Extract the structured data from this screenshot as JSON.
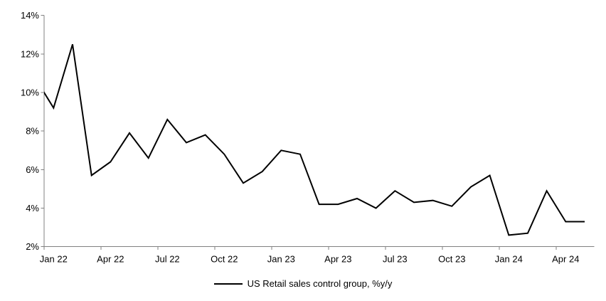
{
  "chart_data": {
    "type": "line",
    "title": "",
    "legend_label": "US Retail sales control group, %y/y",
    "legend_position": "bottom-center",
    "grid": "off",
    "y_axis": {
      "range": [
        2,
        14
      ],
      "tick_values": [
        2,
        4,
        6,
        8,
        10,
        12,
        14
      ],
      "tick_labels": [
        "2%",
        "4%",
        "6%",
        "8%",
        "10%",
        "12%",
        "14%"
      ]
    },
    "x_axis": {
      "tick_labels": [
        "Jan 22",
        "Apr 22",
        "Jul 22",
        "Oct 22",
        "Jan 23",
        "Apr 23",
        "Jul 23",
        "Oct 23",
        "Jan 24",
        "Apr 24"
      ],
      "months_per_label": 3
    },
    "series": [
      {
        "name": "US Retail sales control group, %y/y",
        "color": "#000000",
        "first_point_clipped_off_left_edge": true,
        "months": [
          "Dec 21",
          "Jan 22",
          "Feb 22",
          "Mar 22",
          "Apr 22",
          "May 22",
          "Jun 22",
          "Jul 22",
          "Aug 22",
          "Sep 22",
          "Oct 22",
          "Nov 22",
          "Dec 22",
          "Jan 23",
          "Feb 23",
          "Mar 23",
          "Apr 23",
          "May 23",
          "Jun 23",
          "Jul 23",
          "Aug 23",
          "Sep 23",
          "Oct 23",
          "Nov 23",
          "Dec 23",
          "Jan 24",
          "Feb 24",
          "Mar 24",
          "Apr 24",
          "May 24"
        ],
        "values": [
          10.8,
          9.2,
          12.5,
          5.7,
          6.4,
          7.9,
          6.6,
          8.6,
          7.4,
          7.8,
          6.8,
          5.3,
          5.9,
          7.0,
          6.8,
          4.2,
          4.2,
          4.5,
          4.0,
          4.9,
          4.3,
          4.4,
          4.1,
          5.1,
          5.7,
          2.6,
          2.7,
          4.9,
          3.3,
          3.3
        ]
      }
    ],
    "colors": {
      "line": "#000000",
      "axis": "#808080",
      "text": "#000000",
      "background": "#ffffff"
    }
  }
}
